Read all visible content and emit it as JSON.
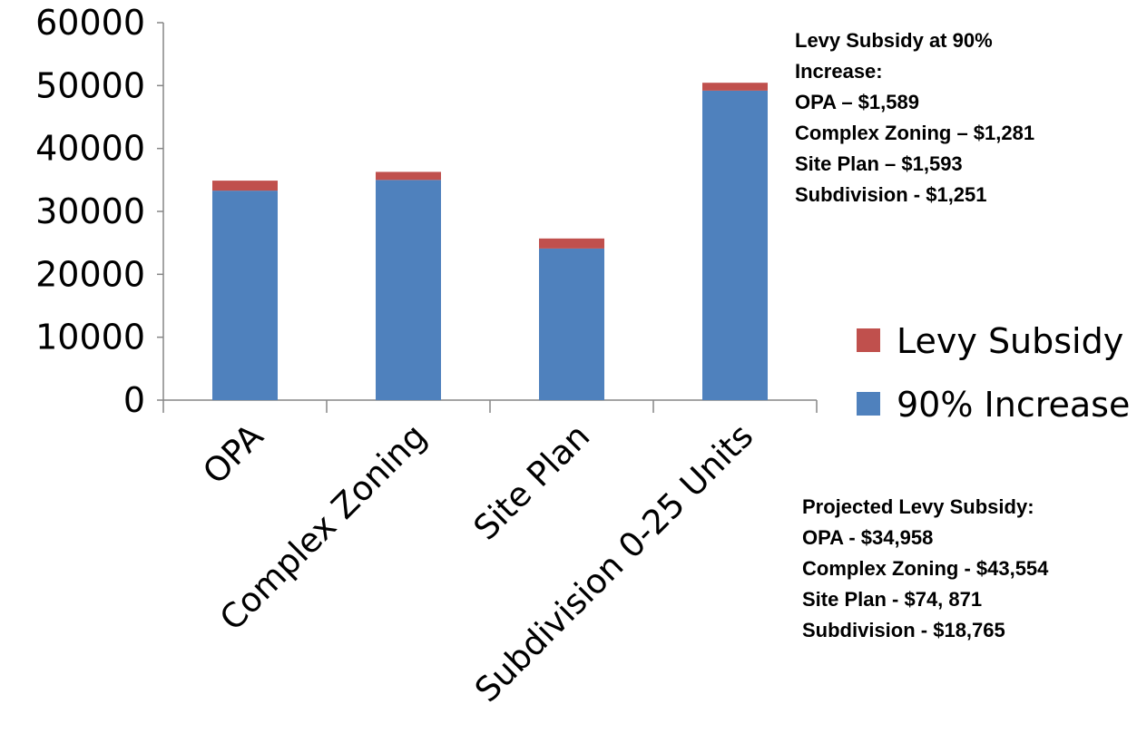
{
  "chart_data": {
    "type": "bar",
    "stacked": true,
    "categories": [
      "OPA",
      "Complex Zoning",
      "Site Plan",
      "Subdivision 0-25 Units"
    ],
    "series": [
      {
        "name": "90% Increase",
        "color": "#4F81BD",
        "values": [
          33300,
          35000,
          24100,
          49200
        ]
      },
      {
        "name": "Levy Subsidy",
        "color": "#C0504D",
        "values": [
          1589,
          1281,
          1593,
          1251
        ]
      }
    ],
    "yticks": [
      "0",
      "10000",
      "20000",
      "30000",
      "40000",
      "50000",
      "60000"
    ],
    "ylim": [
      0,
      60000
    ],
    "grid": false,
    "legend_position": "right",
    "legend_order": [
      "Levy Subsidy",
      "90% Increase"
    ]
  },
  "annotations": {
    "top": {
      "lines": [
        "Levy Subsidy at 90%",
        "Increase:",
        "OPA – $1,589",
        "Complex Zoning – $1,281",
        "Site Plan – $1,593",
        "Subdivision - $1,251"
      ]
    },
    "bottom": {
      "lines": [
        "Projected Levy Subsidy:",
        "OPA - $34,958",
        "Complex Zoning  - $43,554",
        "Site Plan - $74, 871",
        "Subdivision - $18,765"
      ]
    }
  }
}
